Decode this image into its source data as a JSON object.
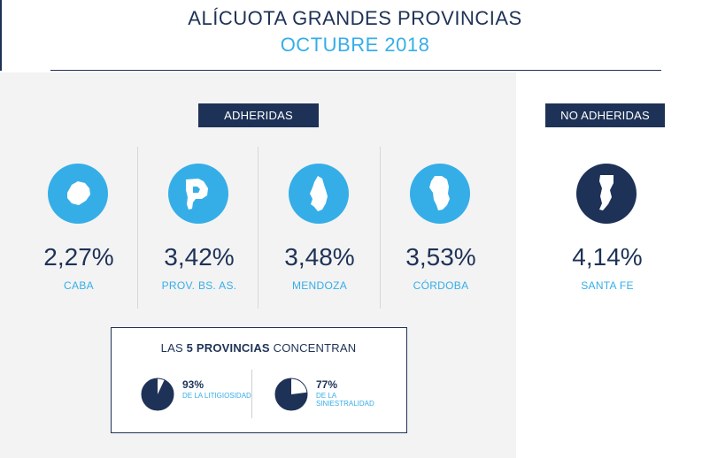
{
  "header": {
    "title": "ALÍCUOTA GRANDES PROVINCIAS",
    "subtitle": "OCTUBRE 2018"
  },
  "groups": {
    "adheridas_label": "ADHERIDAS",
    "no_adheridas_label": "NO ADHERIDAS"
  },
  "provinces": [
    {
      "name": "CABA",
      "value": "2,27%",
      "icon": "caba-map-icon"
    },
    {
      "name": "PROV. BS. AS.",
      "value": "3,42%",
      "icon": "buenos-aires-map-icon"
    },
    {
      "name": "MENDOZA",
      "value": "3,48%",
      "icon": "mendoza-map-icon"
    },
    {
      "name": "CÓRDOBA",
      "value": "3,53%",
      "icon": "cordoba-map-icon"
    },
    {
      "name": "SANTA FE",
      "value": "4,14%",
      "icon": "santa-fe-map-icon"
    }
  ],
  "summary": {
    "heading_pre": "LAS ",
    "heading_bold": "5 PROVINCIAS",
    "heading_post": " CONCENTRAN",
    "stats": [
      {
        "value": "93%",
        "label": "DE LA LITIGIOSIDAD",
        "fraction": 0.93
      },
      {
        "value": "77%",
        "label": "DE LA SINIESTRALIDAD",
        "fraction": 0.77
      }
    ]
  },
  "colors": {
    "navy": "#1e3257",
    "accent": "#35aee8",
    "panel": "#f3f3f3"
  }
}
